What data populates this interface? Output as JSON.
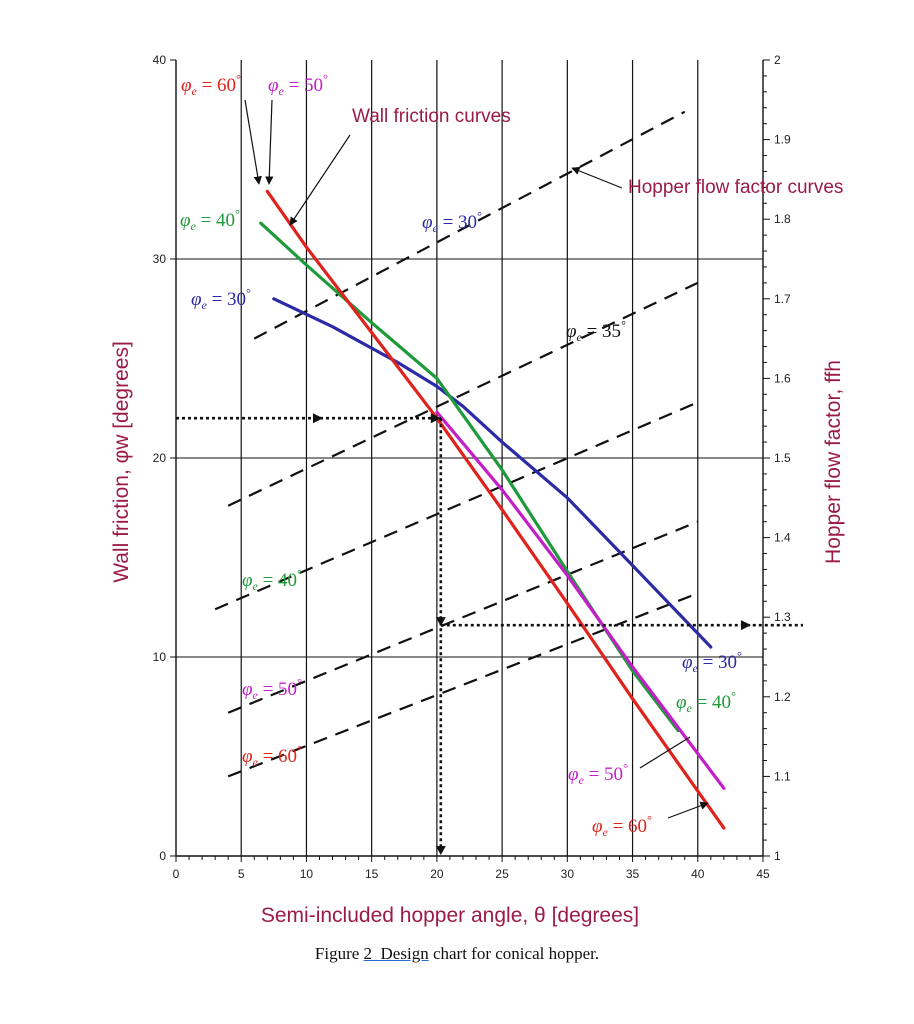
{
  "chart_data": {
    "type": "line",
    "xlabel": "Semi-included hopper angle, θ [degrees]",
    "ylabel": "Wall friction, φw [degrees]",
    "y2label": "Hopper flow factor, ffh",
    "xlim": [
      0,
      45
    ],
    "ylim": [
      0,
      40
    ],
    "y2lim": [
      1,
      2
    ],
    "x_ticks": [
      "0",
      "5",
      "10",
      "15",
      "20",
      "25",
      "30",
      "35",
      "40",
      "45"
    ],
    "y_ticks": [
      "0",
      "10",
      "20",
      "30",
      "40"
    ],
    "y2_ticks": [
      "1",
      "1.1",
      "1.2",
      "1.3",
      "1.4",
      "1.5",
      "1.6",
      "1.7",
      "1.8",
      "1.9",
      "2"
    ],
    "grid": "vertical every 5°, horizontal every 10°",
    "wall_friction_curves": [
      {
        "name": "φe = 30°",
        "color": "#2b2ba6",
        "x": [
          7.5,
          12,
          17,
          20,
          22,
          25,
          30,
          35,
          41
        ],
        "y": [
          28,
          26.6,
          24.8,
          23.6,
          22.6,
          20.8,
          18.0,
          14.6,
          10.5
        ]
      },
      {
        "name": "φe = 40°",
        "color": "#1f9a3a",
        "x": [
          6.5,
          10,
          15,
          20,
          25,
          30,
          35,
          38.5
        ],
        "y": [
          31.8,
          29.7,
          26.8,
          24.0,
          19.4,
          14.3,
          9.3,
          6.3
        ]
      },
      {
        "name": "φe = 50°",
        "color": "#c21fc7",
        "x": [
          20,
          25,
          30,
          35,
          42
        ],
        "y": [
          22.3,
          18.4,
          14.1,
          9.5,
          3.4
        ]
      },
      {
        "name": "φe = 60°",
        "color": "#e0221c",
        "x": [
          7,
          10,
          15,
          20,
          25,
          30,
          35,
          42
        ],
        "y": [
          33.4,
          30.6,
          26.3,
          22.0,
          17.4,
          12.7,
          7.9,
          1.4
        ]
      }
    ],
    "flow_factor_curves": [
      {
        "name": "φe = 30°",
        "x": [
          6,
          39
        ],
        "ff": [
          1.65,
          1.935
        ]
      },
      {
        "name": "φe = 35°",
        "x": [
          4,
          40
        ],
        "ff": [
          1.44,
          1.72
        ]
      },
      {
        "name": "φe = 40°",
        "x": [
          3,
          40
        ],
        "ff": [
          1.31,
          1.57
        ]
      },
      {
        "name": "φe = 50°",
        "x": [
          4,
          40
        ],
        "ff": [
          1.18,
          1.42
        ]
      },
      {
        "name": "φe = 60°",
        "x": [
          4,
          40
        ],
        "ff": [
          1.1,
          1.33
        ]
      }
    ],
    "example_path": {
      "wall_friction": 22,
      "hopper_angle": 20.3,
      "flow_factor": 1.29
    },
    "annotations": {
      "wall_friction_label": "Wall friction curves",
      "flow_factor_label": "Hopper flow factor curves",
      "phi_prefix": "φ",
      "phi_sub": "e",
      "eq": " = ",
      "deg": "°"
    }
  },
  "caption": {
    "prefix": "Figure ",
    "number": "2",
    "underlined": "  Design",
    "rest": " chart for conical hopper."
  }
}
